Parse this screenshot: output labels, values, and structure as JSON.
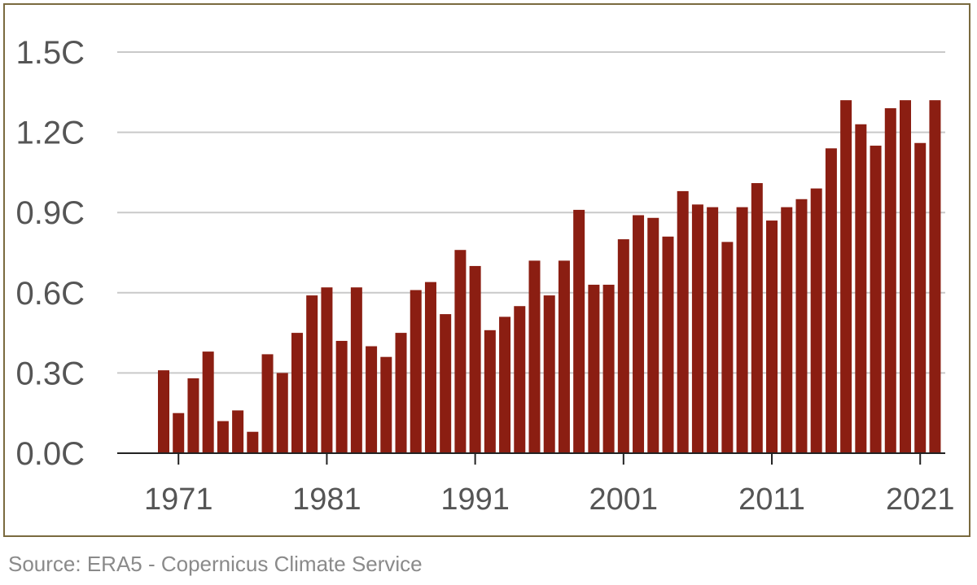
{
  "source": "Source: ERA5 - Copernicus Climate Service",
  "chart_data": {
    "type": "bar",
    "title": "",
    "xlabel": "",
    "ylabel": "",
    "ylim": [
      0,
      1.5
    ],
    "yticks": [
      0,
      0.3,
      0.6,
      0.9,
      1.2,
      1.5
    ],
    "ytick_labels": [
      "0.0C",
      "0.3C",
      "0.6C",
      "0.9C",
      "1.2C",
      "1.5C"
    ],
    "xtick_labels": [
      "1971",
      "1981",
      "1991",
      "2001",
      "2011",
      "2021"
    ],
    "grid": true,
    "bar_color": "#8b1e12",
    "categories": [
      1970,
      1971,
      1972,
      1973,
      1974,
      1975,
      1976,
      1977,
      1978,
      1979,
      1980,
      1981,
      1982,
      1983,
      1984,
      1985,
      1986,
      1987,
      1988,
      1989,
      1990,
      1991,
      1992,
      1993,
      1994,
      1995,
      1996,
      1997,
      1998,
      1999,
      2000,
      2001,
      2002,
      2003,
      2004,
      2005,
      2006,
      2007,
      2008,
      2009,
      2010,
      2011,
      2012,
      2013,
      2014,
      2015,
      2016,
      2017,
      2018,
      2019,
      2020,
      2021,
      2022
    ],
    "values": [
      0.31,
      0.15,
      0.28,
      0.38,
      0.12,
      0.16,
      0.08,
      0.37,
      0.3,
      0.45,
      0.59,
      0.62,
      0.42,
      0.62,
      0.4,
      0.36,
      0.45,
      0.61,
      0.64,
      0.52,
      0.76,
      0.7,
      0.46,
      0.51,
      0.55,
      0.72,
      0.59,
      0.72,
      0.91,
      0.63,
      0.63,
      0.8,
      0.89,
      0.88,
      0.81,
      0.98,
      0.93,
      0.92,
      0.79,
      0.92,
      1.01,
      0.87,
      0.92,
      0.95,
      0.99,
      1.14,
      1.32,
      1.23,
      1.15,
      1.29,
      1.32,
      1.16,
      1.32
    ]
  }
}
